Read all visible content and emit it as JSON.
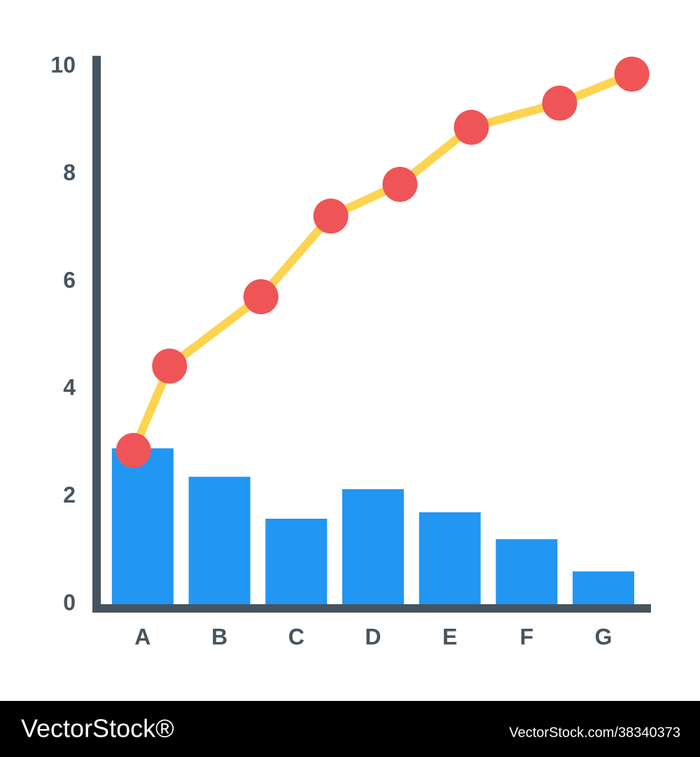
{
  "chart_data": {
    "type": "bar",
    "categories": [
      "A",
      "B",
      "C",
      "D",
      "E",
      "F",
      "G"
    ],
    "values": [
      2.9,
      2.37,
      1.59,
      2.14,
      1.71,
      1.21,
      0.61
    ],
    "color": "#2196f3",
    "ylim": [
      0,
      10.2
    ],
    "yticks": [
      0,
      2,
      4,
      6,
      8,
      10
    ],
    "grid": false,
    "line": {
      "color": "#fdd44f",
      "marker_color": "#ef5456",
      "x": [
        -0.12,
        0.35,
        1.54,
        2.45,
        3.35,
        4.28,
        5.43,
        6.37
      ],
      "values": [
        2.86,
        4.43,
        5.72,
        7.22,
        7.81,
        8.87,
        9.32,
        9.86
      ]
    }
  },
  "watermark": {
    "brand": "VectorStock®",
    "id": "VectorStock.com/38340373"
  }
}
